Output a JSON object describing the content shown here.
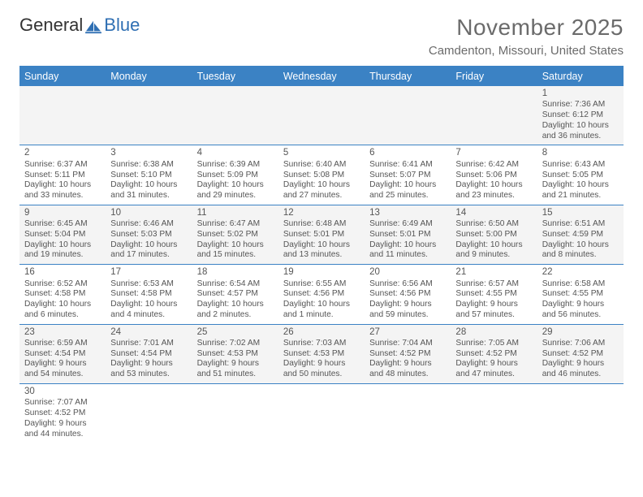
{
  "brand": {
    "part1": "General",
    "part2": "Blue"
  },
  "title": "November 2025",
  "subtitle": "Camdenton, Missouri, United States",
  "colors": {
    "header_blue": "#3b82c4",
    "title_gray": "#6b6b6b",
    "text_gray": "#555555",
    "alt_row_bg": "#f4f4f4",
    "divider": "#3b82c4"
  },
  "dow": [
    "Sunday",
    "Monday",
    "Tuesday",
    "Wednesday",
    "Thursday",
    "Friday",
    "Saturday"
  ],
  "weeks": [
    [
      null,
      null,
      null,
      null,
      null,
      null,
      {
        "n": "1",
        "sr": "Sunrise: 7:36 AM",
        "ss": "Sunset: 6:12 PM",
        "d1": "Daylight: 10 hours",
        "d2": "and 36 minutes."
      }
    ],
    [
      {
        "n": "2",
        "sr": "Sunrise: 6:37 AM",
        "ss": "Sunset: 5:11 PM",
        "d1": "Daylight: 10 hours",
        "d2": "and 33 minutes."
      },
      {
        "n": "3",
        "sr": "Sunrise: 6:38 AM",
        "ss": "Sunset: 5:10 PM",
        "d1": "Daylight: 10 hours",
        "d2": "and 31 minutes."
      },
      {
        "n": "4",
        "sr": "Sunrise: 6:39 AM",
        "ss": "Sunset: 5:09 PM",
        "d1": "Daylight: 10 hours",
        "d2": "and 29 minutes."
      },
      {
        "n": "5",
        "sr": "Sunrise: 6:40 AM",
        "ss": "Sunset: 5:08 PM",
        "d1": "Daylight: 10 hours",
        "d2": "and 27 minutes."
      },
      {
        "n": "6",
        "sr": "Sunrise: 6:41 AM",
        "ss": "Sunset: 5:07 PM",
        "d1": "Daylight: 10 hours",
        "d2": "and 25 minutes."
      },
      {
        "n": "7",
        "sr": "Sunrise: 6:42 AM",
        "ss": "Sunset: 5:06 PM",
        "d1": "Daylight: 10 hours",
        "d2": "and 23 minutes."
      },
      {
        "n": "8",
        "sr": "Sunrise: 6:43 AM",
        "ss": "Sunset: 5:05 PM",
        "d1": "Daylight: 10 hours",
        "d2": "and 21 minutes."
      }
    ],
    [
      {
        "n": "9",
        "sr": "Sunrise: 6:45 AM",
        "ss": "Sunset: 5:04 PM",
        "d1": "Daylight: 10 hours",
        "d2": "and 19 minutes."
      },
      {
        "n": "10",
        "sr": "Sunrise: 6:46 AM",
        "ss": "Sunset: 5:03 PM",
        "d1": "Daylight: 10 hours",
        "d2": "and 17 minutes."
      },
      {
        "n": "11",
        "sr": "Sunrise: 6:47 AM",
        "ss": "Sunset: 5:02 PM",
        "d1": "Daylight: 10 hours",
        "d2": "and 15 minutes."
      },
      {
        "n": "12",
        "sr": "Sunrise: 6:48 AM",
        "ss": "Sunset: 5:01 PM",
        "d1": "Daylight: 10 hours",
        "d2": "and 13 minutes."
      },
      {
        "n": "13",
        "sr": "Sunrise: 6:49 AM",
        "ss": "Sunset: 5:01 PM",
        "d1": "Daylight: 10 hours",
        "d2": "and 11 minutes."
      },
      {
        "n": "14",
        "sr": "Sunrise: 6:50 AM",
        "ss": "Sunset: 5:00 PM",
        "d1": "Daylight: 10 hours",
        "d2": "and 9 minutes."
      },
      {
        "n": "15",
        "sr": "Sunrise: 6:51 AM",
        "ss": "Sunset: 4:59 PM",
        "d1": "Daylight: 10 hours",
        "d2": "and 8 minutes."
      }
    ],
    [
      {
        "n": "16",
        "sr": "Sunrise: 6:52 AM",
        "ss": "Sunset: 4:58 PM",
        "d1": "Daylight: 10 hours",
        "d2": "and 6 minutes."
      },
      {
        "n": "17",
        "sr": "Sunrise: 6:53 AM",
        "ss": "Sunset: 4:58 PM",
        "d1": "Daylight: 10 hours",
        "d2": "and 4 minutes."
      },
      {
        "n": "18",
        "sr": "Sunrise: 6:54 AM",
        "ss": "Sunset: 4:57 PM",
        "d1": "Daylight: 10 hours",
        "d2": "and 2 minutes."
      },
      {
        "n": "19",
        "sr": "Sunrise: 6:55 AM",
        "ss": "Sunset: 4:56 PM",
        "d1": "Daylight: 10 hours",
        "d2": "and 1 minute."
      },
      {
        "n": "20",
        "sr": "Sunrise: 6:56 AM",
        "ss": "Sunset: 4:56 PM",
        "d1": "Daylight: 9 hours",
        "d2": "and 59 minutes."
      },
      {
        "n": "21",
        "sr": "Sunrise: 6:57 AM",
        "ss": "Sunset: 4:55 PM",
        "d1": "Daylight: 9 hours",
        "d2": "and 57 minutes."
      },
      {
        "n": "22",
        "sr": "Sunrise: 6:58 AM",
        "ss": "Sunset: 4:55 PM",
        "d1": "Daylight: 9 hours",
        "d2": "and 56 minutes."
      }
    ],
    [
      {
        "n": "23",
        "sr": "Sunrise: 6:59 AM",
        "ss": "Sunset: 4:54 PM",
        "d1": "Daylight: 9 hours",
        "d2": "and 54 minutes."
      },
      {
        "n": "24",
        "sr": "Sunrise: 7:01 AM",
        "ss": "Sunset: 4:54 PM",
        "d1": "Daylight: 9 hours",
        "d2": "and 53 minutes."
      },
      {
        "n": "25",
        "sr": "Sunrise: 7:02 AM",
        "ss": "Sunset: 4:53 PM",
        "d1": "Daylight: 9 hours",
        "d2": "and 51 minutes."
      },
      {
        "n": "26",
        "sr": "Sunrise: 7:03 AM",
        "ss": "Sunset: 4:53 PM",
        "d1": "Daylight: 9 hours",
        "d2": "and 50 minutes."
      },
      {
        "n": "27",
        "sr": "Sunrise: 7:04 AM",
        "ss": "Sunset: 4:52 PM",
        "d1": "Daylight: 9 hours",
        "d2": "and 48 minutes."
      },
      {
        "n": "28",
        "sr": "Sunrise: 7:05 AM",
        "ss": "Sunset: 4:52 PM",
        "d1": "Daylight: 9 hours",
        "d2": "and 47 minutes."
      },
      {
        "n": "29",
        "sr": "Sunrise: 7:06 AM",
        "ss": "Sunset: 4:52 PM",
        "d1": "Daylight: 9 hours",
        "d2": "and 46 minutes."
      }
    ],
    [
      {
        "n": "30",
        "sr": "Sunrise: 7:07 AM",
        "ss": "Sunset: 4:52 PM",
        "d1": "Daylight: 9 hours",
        "d2": "and 44 minutes."
      },
      null,
      null,
      null,
      null,
      null,
      null
    ]
  ]
}
